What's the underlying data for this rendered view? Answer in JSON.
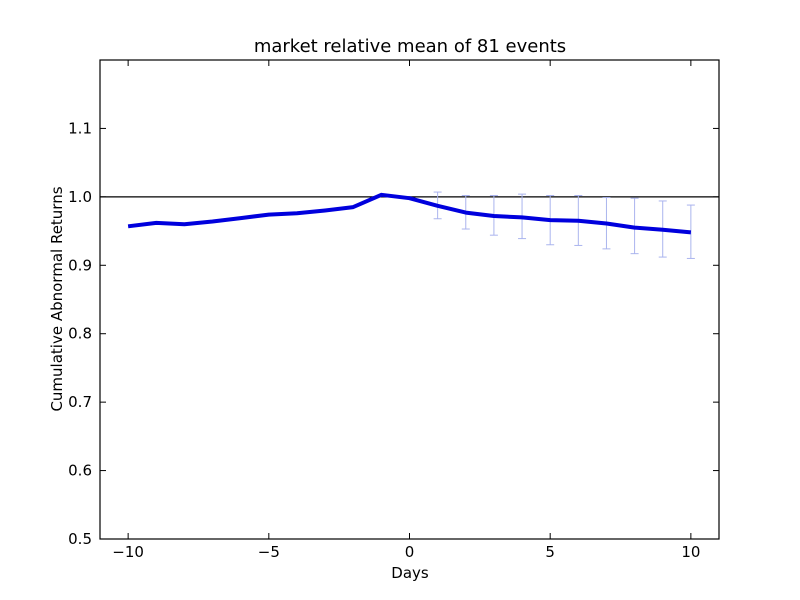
{
  "chart_data": {
    "type": "line",
    "title": "market relative mean of 81 events",
    "xlabel": "Days",
    "ylabel": "Cumulative Abnormal Returns",
    "xlim": [
      -11,
      11
    ],
    "ylim": [
      0.5,
      1.2
    ],
    "xticks": [
      -10,
      -5,
      0,
      5,
      10
    ],
    "xtick_labels": [
      "−10",
      "−5",
      "0",
      "5",
      "10"
    ],
    "yticks": [
      0.5,
      0.6,
      0.7,
      0.8,
      0.9,
      1.0,
      1.1
    ],
    "ytick_labels": [
      "0.5",
      "0.6",
      "0.7",
      "0.8",
      "0.9",
      "1.0",
      "1.1"
    ],
    "grid": false,
    "reference_line": {
      "y": 1.0,
      "color": "#000000"
    },
    "series": [
      {
        "color": "#0000dd",
        "x": [
          -10,
          -9,
          -8,
          -7,
          -6,
          -5,
          -4,
          -3,
          -2,
          -1,
          0,
          1,
          2,
          3,
          4,
          5,
          6,
          7,
          8,
          9,
          10
        ],
        "y": [
          0.957,
          0.962,
          0.96,
          0.964,
          0.969,
          0.974,
          0.976,
          0.98,
          0.985,
          1.003,
          0.998,
          0.987,
          0.977,
          0.972,
          0.97,
          0.966,
          0.965,
          0.961,
          0.955,
          0.952,
          0.948
        ]
      }
    ],
    "error_bars": {
      "color": "#aab4ee",
      "x": [
        1,
        2,
        3,
        4,
        5,
        6,
        7,
        8,
        9,
        10
      ],
      "low": [
        0.968,
        0.953,
        0.944,
        0.939,
        0.93,
        0.929,
        0.924,
        0.917,
        0.912,
        0.91
      ],
      "high": [
        1.007,
        1.002,
        1.002,
        1.004,
        1.002,
        1.002,
        0.999,
        0.998,
        0.994,
        0.988
      ]
    }
  }
}
